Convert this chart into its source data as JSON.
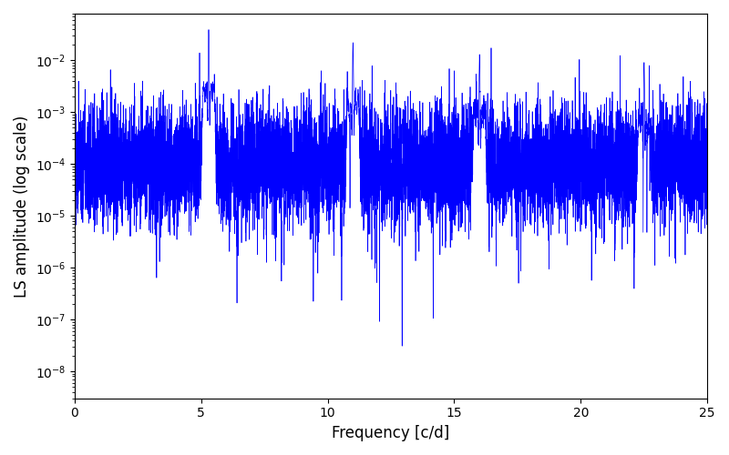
{
  "title": "",
  "xlabel": "Frequency [c/d]",
  "ylabel": "LS amplitude (log scale)",
  "line_color": "#0000FF",
  "line_width": 0.5,
  "xmin": 0,
  "xmax": 25,
  "ymin": 3e-09,
  "ymax": 0.08,
  "peak_freqs": [
    5.3,
    11.0,
    16.0,
    22.5
  ],
  "peak_amps": [
    0.038,
    0.022,
    0.012,
    0.009
  ],
  "background_log_mean": -4.0,
  "background_log_std": 0.55,
  "num_points": 10000,
  "seed": 77
}
